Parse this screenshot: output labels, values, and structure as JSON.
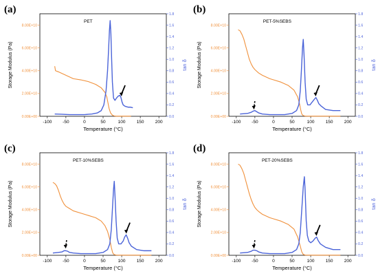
{
  "colors": {
    "storage_modulus": "#f0903a",
    "tan_delta": "#4a63d8",
    "left_axis_text": "#f0903a",
    "right_axis_text": "#5166dc",
    "frame": "#000000"
  },
  "shared_axes": {
    "xlabel": "Temperature (°C)",
    "ylabel_left": "Storage Modulus (Pa)",
    "ylabel_right": "tan δ",
    "x_ticks": [
      "-100",
      "-50",
      "0",
      "50",
      "100",
      "150",
      "200"
    ],
    "y_left_ticks": [
      "0.00E+00",
      "2.00E+10",
      "4.00E+10",
      "6.00E+10",
      "8.00E+10"
    ],
    "y_right_ticks": [
      "0.0",
      "0.2",
      "0.4",
      "0.6",
      "0.8",
      "1.0",
      "1.2",
      "1.4",
      "1.6",
      "1.8"
    ]
  },
  "chart_data": [
    {
      "panel": "(a)",
      "type": "line",
      "title": "PET",
      "xlabel": "Temperature (°C)",
      "ylabel": "Storage Modulus (Pa)",
      "ylabel_right": "tan δ",
      "xlim": [
        -120,
        220
      ],
      "ylim": [
        0,
        90000000000.0
      ],
      "ylim_right": [
        0,
        1.8
      ],
      "series": [
        {
          "axis": "left",
          "x": [
            -80,
            -78,
            -70,
            -50,
            -30,
            -10,
            10,
            30,
            45,
            55,
            60,
            63,
            66,
            70,
            75,
            80,
            85,
            95,
            110,
            125
          ],
          "y": [
            44000000000.0,
            40000000000.0,
            39000000000.0,
            36000000000.0,
            33000000000.0,
            32000000000.0,
            30500000000.0,
            28000000000.0,
            25000000000.0,
            21000000000.0,
            17000000000.0,
            12000000000.0,
            7000000000.0,
            3000000000.0,
            1000000000.0,
            300000000.0,
            100000000.0,
            100000000.0,
            100000000.0,
            100000000.0
          ]
        },
        {
          "axis": "right",
          "x": [
            -80,
            -60,
            -40,
            -20,
            0,
            20,
            35,
            45,
            52,
            58,
            62,
            65,
            67,
            69,
            71,
            73,
            75,
            78,
            82,
            86,
            90,
            95,
            98,
            101,
            104,
            108,
            112,
            118,
            124,
            130
          ],
          "y": [
            0.04,
            0.035,
            0.03,
            0.03,
            0.03,
            0.04,
            0.06,
            0.1,
            0.2,
            0.45,
            0.8,
            1.2,
            1.5,
            1.68,
            1.45,
            1.0,
            0.6,
            0.32,
            0.28,
            0.32,
            0.35,
            0.37,
            0.33,
            0.25,
            0.2,
            0.18,
            0.17,
            0.16,
            0.16,
            0.15
          ]
        }
      ],
      "arrows": [
        {
          "style": "solid",
          "x": 100,
          "y": 0.35
        }
      ]
    },
    {
      "panel": "(b)",
      "type": "line",
      "title": "PET-5%SEBS",
      "xlabel": "Temperature (°C)",
      "ylabel": "Storage Modulus (Pa)",
      "ylabel_right": "tan δ",
      "xlim": [
        -120,
        220
      ],
      "ylim": [
        0,
        90000000000.0
      ],
      "ylim_right": [
        0,
        1.8
      ],
      "series": [
        {
          "axis": "left",
          "x": [
            -95,
            -90,
            -85,
            -80,
            -75,
            -70,
            -65,
            -60,
            -55,
            -50,
            -45,
            -40,
            -30,
            -20,
            -10,
            0,
            20,
            40,
            55,
            65,
            70,
            73,
            76,
            80,
            85,
            95,
            120,
            150,
            180
          ],
          "y": [
            76000000000.0,
            75000000000.0,
            72000000000.0,
            68000000000.0,
            62000000000.0,
            56000000000.0,
            50000000000.0,
            46000000000.0,
            43000000000.0,
            41000000000.0,
            39500000000.0,
            38000000000.0,
            36000000000.0,
            34500000000.0,
            33000000000.0,
            32000000000.0,
            30000000000.0,
            27000000000.0,
            23000000000.0,
            17000000000.0,
            11000000000.0,
            6000000000.0,
            2000000000.0,
            600000000.0,
            200000000.0,
            100000000.0,
            100000000.0,
            100000000.0,
            100000000.0
          ]
        },
        {
          "axis": "right",
          "x": [
            -90,
            -70,
            -60,
            -55,
            -50,
            -45,
            -40,
            -30,
            -10,
            10,
            30,
            50,
            62,
            68,
            72,
            75,
            78,
            80,
            82,
            85,
            88,
            92,
            98,
            104,
            110,
            114,
            118,
            122,
            128,
            140,
            160,
            180
          ],
          "y": [
            0.04,
            0.05,
            0.07,
            0.09,
            0.1,
            0.08,
            0.06,
            0.04,
            0.03,
            0.03,
            0.03,
            0.05,
            0.1,
            0.2,
            0.45,
            0.8,
            1.2,
            1.35,
            1.1,
            0.6,
            0.3,
            0.2,
            0.2,
            0.25,
            0.3,
            0.33,
            0.28,
            0.22,
            0.18,
            0.12,
            0.1,
            0.1
          ]
        }
      ],
      "arrows": [
        {
          "style": "dashed",
          "x": -52,
          "y": 0.12
        },
        {
          "style": "solid",
          "x": 114,
          "y": 0.35
        }
      ]
    },
    {
      "panel": "(c)",
      "type": "line",
      "title": "PET-10%SEBS",
      "xlabel": "Temperature (°C)",
      "ylabel": "Storage Modulus (Pa)",
      "ylabel_right": "tan δ",
      "xlim": [
        -120,
        220
      ],
      "ylim": [
        0,
        90000000000.0
      ],
      "ylim_right": [
        0,
        1.8
      ],
      "series": [
        {
          "axis": "left",
          "x": [
            -85,
            -80,
            -75,
            -70,
            -65,
            -60,
            -55,
            -50,
            -40,
            -30,
            -10,
            10,
            30,
            45,
            55,
            62,
            68,
            72,
            76,
            80,
            85,
            95,
            120,
            150,
            180
          ],
          "y": [
            64000000000.0,
            63000000000.0,
            61000000000.0,
            57000000000.0,
            52000000000.0,
            48000000000.0,
            45000000000.0,
            43000000000.0,
            41000000000.0,
            39000000000.0,
            37000000000.0,
            35000000000.0,
            33000000000.0,
            30000000000.0,
            26000000000.0,
            21000000000.0,
            14000000000.0,
            7000000000.0,
            2000000000.0,
            600000000.0,
            200000000.0,
            100000000.0,
            100000000.0,
            100000000.0,
            100000000.0
          ]
        },
        {
          "axis": "right",
          "x": [
            -85,
            -70,
            -60,
            -55,
            -50,
            -45,
            -40,
            -30,
            -10,
            10,
            30,
            50,
            62,
            68,
            72,
            75,
            78,
            80,
            82,
            85,
            88,
            92,
            98,
            104,
            108,
            112,
            116,
            120,
            126,
            140,
            160,
            180
          ],
          "y": [
            0.04,
            0.05,
            0.06,
            0.08,
            0.08,
            0.07,
            0.05,
            0.04,
            0.03,
            0.03,
            0.03,
            0.05,
            0.1,
            0.2,
            0.45,
            0.8,
            1.15,
            1.3,
            1.05,
            0.6,
            0.3,
            0.2,
            0.2,
            0.25,
            0.32,
            0.36,
            0.3,
            0.22,
            0.16,
            0.1,
            0.08,
            0.08
          ]
        }
      ],
      "arrows": [
        {
          "style": "dashed",
          "x": -50,
          "y": 0.12
        },
        {
          "style": "solid",
          "x": 113,
          "y": 0.38
        }
      ]
    },
    {
      "panel": "(d)",
      "type": "line",
      "title": "PET-20%SEBS",
      "xlabel": "Temperature (°C)",
      "ylabel": "Storage Modulus (Pa)",
      "ylabel_right": "tan δ",
      "xlim": [
        -120,
        220
      ],
      "ylim": [
        0,
        90000000000.0
      ],
      "ylim_right": [
        0,
        1.8
      ],
      "series": [
        {
          "axis": "left",
          "x": [
            -95,
            -90,
            -85,
            -80,
            -75,
            -70,
            -65,
            -60,
            -55,
            -50,
            -45,
            -40,
            -30,
            -20,
            -10,
            0,
            20,
            40,
            55,
            65,
            72,
            76,
            80,
            85,
            95,
            120,
            150,
            180
          ],
          "y": [
            80000000000.0,
            79000000000.0,
            76000000000.0,
            72000000000.0,
            66000000000.0,
            60000000000.0,
            54000000000.0,
            49000000000.0,
            45000000000.0,
            42000000000.0,
            40000000000.0,
            38500000000.0,
            36000000000.0,
            34500000000.0,
            33000000000.0,
            32000000000.0,
            30000000000.0,
            27000000000.0,
            23000000000.0,
            16000000000.0,
            8000000000.0,
            3000000000.0,
            800000000.0,
            200000000.0,
            100000000.0,
            100000000.0,
            100000000.0,
            100000000.0
          ]
        },
        {
          "axis": "right",
          "x": [
            -90,
            -70,
            -60,
            -55,
            -50,
            -45,
            -40,
            -30,
            -10,
            10,
            30,
            50,
            62,
            68,
            72,
            76,
            80,
            83,
            85,
            88,
            91,
            95,
            100,
            106,
            112,
            116,
            120,
            126,
            140,
            160,
            180
          ],
          "y": [
            0.04,
            0.05,
            0.07,
            0.09,
            0.09,
            0.08,
            0.06,
            0.04,
            0.03,
            0.03,
            0.03,
            0.05,
            0.1,
            0.2,
            0.4,
            0.8,
            1.2,
            1.38,
            1.15,
            0.6,
            0.35,
            0.25,
            0.22,
            0.25,
            0.3,
            0.32,
            0.26,
            0.2,
            0.14,
            0.1,
            0.1
          ]
        }
      ],
      "arrows": [
        {
          "style": "dashed",
          "x": -52,
          "y": 0.12
        },
        {
          "style": "solid",
          "x": 116,
          "y": 0.34
        }
      ]
    }
  ]
}
